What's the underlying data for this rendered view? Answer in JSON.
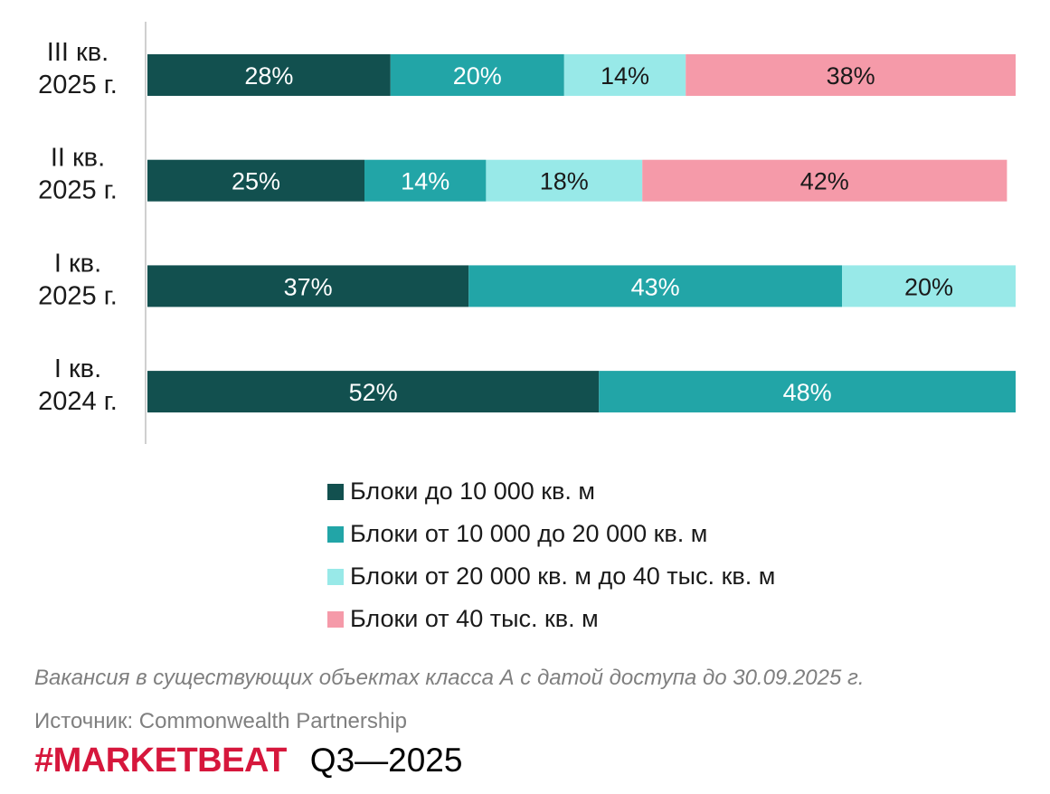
{
  "chart_data": {
    "type": "bar",
    "orientation": "horizontal",
    "stacked": true,
    "categories": [
      [
        "III кв.",
        "2025 г."
      ],
      [
        "II кв.",
        "2025 г."
      ],
      [
        "I кв.",
        "2025 г."
      ],
      [
        "I кв.",
        "2024 г."
      ]
    ],
    "series": [
      {
        "name": "Блоки до 10 000 кв. м",
        "color": "#12504f",
        "label_color": "#ffffff",
        "values": [
          28,
          25,
          37,
          52
        ]
      },
      {
        "name": "Блоки от 10 000 до 20 000 кв. м",
        "color": "#22a5a7",
        "label_color": "#ffffff",
        "values": [
          20,
          14,
          43,
          48
        ]
      },
      {
        "name": "Блоки от 20 000 кв. м до 40 тыс. кв. м",
        "color": "#98e9e8",
        "label_color": "#1a1a1a",
        "values": [
          14,
          18,
          20,
          0
        ]
      },
      {
        "name": "Блоки от 40 тыс. кв. м",
        "color": "#f59aa9",
        "label_color": "#1a1a1a",
        "values": [
          38,
          42,
          0,
          0
        ]
      }
    ],
    "value_suffix": "%",
    "xlim": [
      0,
      100
    ],
    "legend_position": "bottom"
  },
  "note": "Вакансия в существующих объектах класса А с датой доступа до 30.09.2025 г.",
  "source": "Источник: Commonwealth Partnership",
  "brand": "#MARKETBEAT",
  "period": "Q3—2025"
}
